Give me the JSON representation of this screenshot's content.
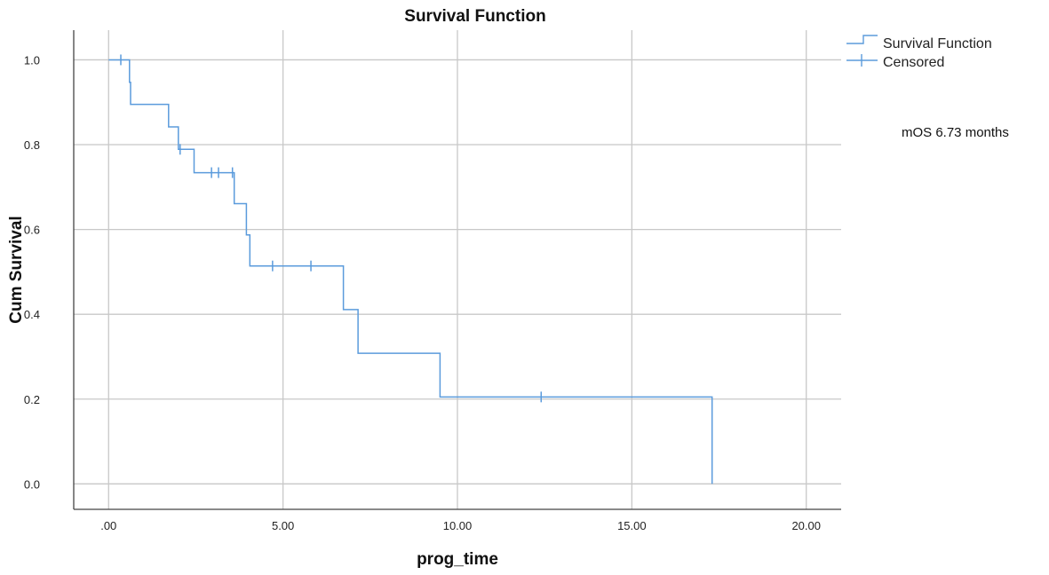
{
  "chart_data": {
    "type": "line",
    "title": "Survival Function",
    "xlabel": "prog_time",
    "ylabel": "Cum Survival",
    "xlim": [
      -1.0,
      21.0
    ],
    "ylim": [
      -0.06,
      1.07
    ],
    "x_ticks": [
      0,
      5,
      10,
      15,
      20
    ],
    "x_tick_labels": [
      ".00",
      "5.00",
      "10.00",
      "15.00",
      "20.00"
    ],
    "y_ticks": [
      0.0,
      0.2,
      0.4,
      0.6,
      0.8,
      1.0
    ],
    "y_tick_labels": [
      "0.0",
      "0.2",
      "0.4",
      "0.6",
      "0.8",
      "1.0"
    ],
    "grid": true,
    "legend_position": "top-right",
    "series": [
      {
        "name": "Survival Function",
        "kind": "step",
        "color": "#5b9bdc",
        "points": [
          [
            0,
            1.0
          ],
          [
            0.6,
            1.0
          ],
          [
            0.6,
            0.947
          ],
          [
            0.63,
            0.947
          ],
          [
            0.63,
            0.895
          ],
          [
            1.72,
            0.895
          ],
          [
            1.72,
            0.842
          ],
          [
            2.0,
            0.842
          ],
          [
            2.0,
            0.789
          ],
          [
            2.45,
            0.789
          ],
          [
            2.45,
            0.734
          ],
          [
            3.6,
            0.734
          ],
          [
            3.6,
            0.661
          ],
          [
            3.95,
            0.661
          ],
          [
            3.95,
            0.587
          ],
          [
            4.05,
            0.587
          ],
          [
            4.05,
            0.514
          ],
          [
            6.73,
            0.514
          ],
          [
            6.73,
            0.411
          ],
          [
            7.15,
            0.411
          ],
          [
            7.15,
            0.308
          ],
          [
            9.5,
            0.308
          ],
          [
            9.5,
            0.205
          ],
          [
            17.3,
            0.205
          ],
          [
            17.3,
            0.0
          ]
        ]
      },
      {
        "name": "Censored",
        "kind": "censor-marks",
        "color": "#5b9bdc",
        "points": [
          [
            0.35,
            1.0
          ],
          [
            2.05,
            0.789
          ],
          [
            2.95,
            0.734
          ],
          [
            3.15,
            0.734
          ],
          [
            3.55,
            0.734
          ],
          [
            4.7,
            0.514
          ],
          [
            5.8,
            0.514
          ],
          [
            12.4,
            0.205
          ]
        ]
      }
    ],
    "annotations": [
      {
        "text": "mOS 6.73 months"
      }
    ]
  }
}
